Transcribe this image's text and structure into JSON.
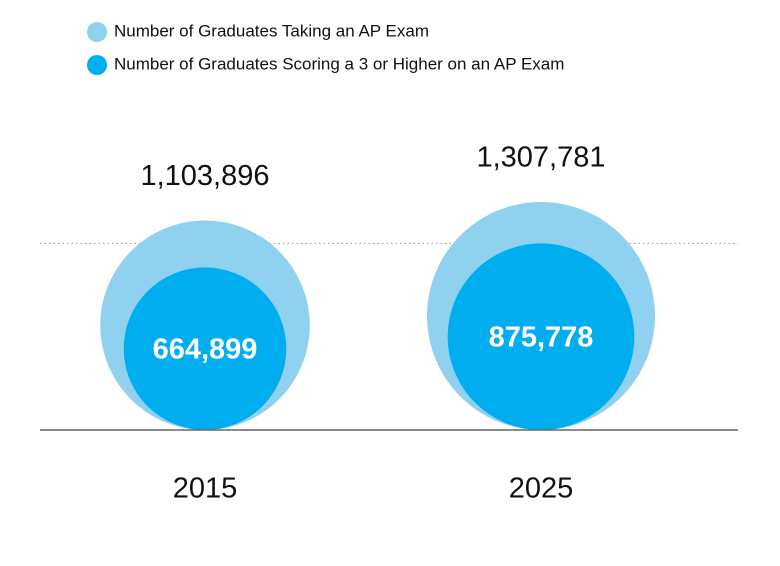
{
  "chart_data": {
    "type": "bubble",
    "categories": [
      "2015",
      "2025"
    ],
    "series": [
      {
        "name": "Number of Graduates Taking an AP Exam",
        "color": "#8fd1ee",
        "values": [
          1103896,
          1307781
        ],
        "value_labels": [
          "1,103,896",
          "1,307,781"
        ]
      },
      {
        "name": "Number of Graduates Scoring a 3 or Higher on an AP Exam",
        "color": "#00aeef",
        "values": [
          664899,
          875778
        ],
        "value_labels": [
          "664,899",
          "875,778"
        ]
      }
    ]
  }
}
